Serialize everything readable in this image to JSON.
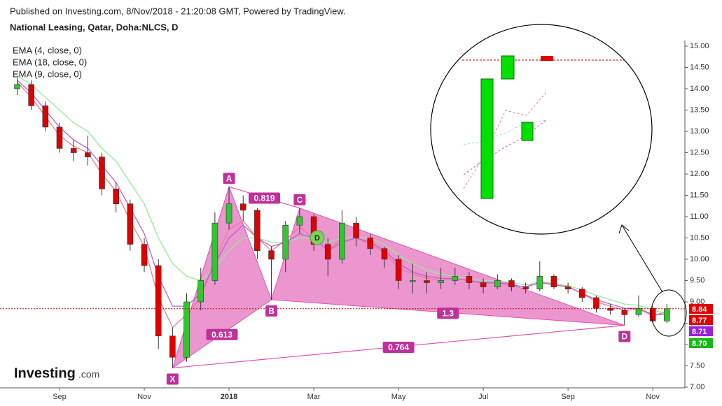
{
  "header": {
    "published": "Published on Investing.com, 8/Nov/2018 - 21:20:08 GMT, Powered by TradingView.",
    "logo": {
      "name": "Investing",
      "suffix": ".com"
    }
  },
  "chart_data": {
    "type": "candlestick",
    "title": "National Leasing, Qatar, Doha:NLCS, D",
    "categories": [
      null,
      null,
      null,
      "Sep",
      null,
      null,
      null,
      null,
      null,
      "Nov",
      null,
      null,
      null,
      null,
      null,
      "2018",
      null,
      null,
      null,
      null,
      null,
      "Mar",
      null,
      null,
      null,
      null,
      null,
      "May",
      null,
      null,
      null,
      null,
      null,
      "Jul",
      null,
      null,
      null,
      null,
      null,
      "Sep",
      null,
      null,
      null,
      null,
      null,
      "Nov",
      null
    ],
    "open": [
      14.0,
      14.1,
      13.6,
      13.1,
      12.6,
      12.5,
      12.4,
      11.65,
      11.3,
      10.35,
      9.85,
      8.2,
      7.7,
      9.0,
      9.5,
      10.85,
      11.3,
      11.15,
      10.2,
      10.0,
      10.8,
      11.0,
      10.35,
      10.0,
      10.85,
      10.5,
      10.25,
      10.0,
      9.5,
      9.5,
      9.45,
      9.5,
      9.6,
      9.45,
      9.35,
      9.5,
      9.35,
      9.3,
      9.6,
      9.35,
      9.3,
      9.1,
      8.85,
      8.8,
      8.7,
      8.85,
      8.55
    ],
    "high": [
      14.25,
      14.2,
      13.7,
      13.2,
      12.8,
      12.9,
      12.5,
      11.8,
      11.4,
      10.5,
      10.0,
      8.4,
      9.2,
      9.8,
      11.1,
      11.7,
      11.5,
      11.2,
      10.3,
      10.9,
      11.2,
      11.05,
      10.5,
      11.15,
      11.0,
      10.6,
      10.3,
      10.1,
      9.9,
      9.7,
      9.8,
      9.8,
      9.7,
      9.55,
      9.65,
      9.55,
      9.45,
      9.95,
      9.65,
      9.45,
      9.35,
      9.15,
      8.95,
      8.85,
      9.15,
      8.9,
      8.95
    ],
    "low": [
      13.85,
      13.5,
      13.0,
      12.5,
      12.3,
      12.2,
      11.5,
      11.1,
      10.2,
      9.7,
      7.9,
      7.45,
      7.6,
      8.8,
      9.4,
      10.7,
      10.9,
      10.0,
      9.05,
      9.7,
      10.6,
      10.2,
      9.6,
      9.9,
      10.3,
      10.1,
      9.8,
      9.3,
      9.2,
      9.2,
      9.3,
      9.4,
      9.3,
      9.2,
      9.3,
      9.25,
      9.2,
      9.25,
      9.3,
      9.2,
      9.0,
      8.75,
      8.7,
      8.45,
      8.65,
      8.5,
      8.5
    ],
    "close": [
      14.1,
      13.6,
      13.1,
      12.6,
      12.5,
      12.4,
      11.65,
      11.3,
      10.35,
      9.85,
      8.2,
      7.7,
      9.0,
      9.5,
      10.85,
      11.3,
      11.15,
      10.2,
      10.0,
      10.8,
      11.0,
      10.35,
      10.0,
      10.85,
      10.5,
      10.25,
      10.0,
      9.5,
      9.5,
      9.45,
      9.5,
      9.6,
      9.45,
      9.35,
      9.5,
      9.35,
      9.3,
      9.6,
      9.35,
      9.3,
      9.1,
      8.85,
      8.8,
      8.7,
      8.85,
      8.55,
      8.84
    ],
    "up_color": "#2ec82e",
    "down_color": "#e00000",
    "series": [
      {
        "name": "EMA (4, close, 0)",
        "color": "#f07a8a",
        "values": [
          14.15,
          13.8,
          13.35,
          12.9,
          12.65,
          12.5,
          12.0,
          11.6,
          10.9,
          10.3,
          9.1,
          8.4,
          8.7,
          9.1,
          10.0,
          10.7,
          10.9,
          10.5,
          10.2,
          10.45,
          10.75,
          10.5,
          10.2,
          10.5,
          10.5,
          10.35,
          10.15,
          9.8,
          9.65,
          9.55,
          9.5,
          9.55,
          9.5,
          9.42,
          9.46,
          9.4,
          9.35,
          9.48,
          9.42,
          9.36,
          9.2,
          9.0,
          8.9,
          8.8,
          8.83,
          8.68,
          8.77
        ]
      },
      {
        "name": "EMA (18, close, 0)",
        "color": "#90ee90",
        "values": [
          14.3,
          14.1,
          13.8,
          13.5,
          13.2,
          13.0,
          12.6,
          12.3,
          11.8,
          11.3,
          10.5,
          9.9,
          9.6,
          9.5,
          9.8,
          10.2,
          10.5,
          10.5,
          10.4,
          10.4,
          10.5,
          10.5,
          10.4,
          10.5,
          10.5,
          10.5,
          10.35,
          10.1,
          9.9,
          9.75,
          9.65,
          9.6,
          9.55,
          9.5,
          9.5,
          9.45,
          9.4,
          9.45,
          9.42,
          9.38,
          9.28,
          9.15,
          9.05,
          8.95,
          8.92,
          8.82,
          8.7
        ]
      },
      {
        "name": "EMA (9, close, 0)",
        "color": "#b860d0",
        "values": [
          14.2,
          13.9,
          13.5,
          13.1,
          12.8,
          12.6,
          12.2,
          11.8,
          11.2,
          10.6,
          9.6,
          8.9,
          8.9,
          9.2,
          9.9,
          10.5,
          10.8,
          10.5,
          10.3,
          10.4,
          10.6,
          10.5,
          10.2,
          10.4,
          10.5,
          10.4,
          10.2,
          9.9,
          9.7,
          9.6,
          9.55,
          9.55,
          9.5,
          9.45,
          9.45,
          9.4,
          9.35,
          9.45,
          9.4,
          9.35,
          9.2,
          9.05,
          8.95,
          8.85,
          8.85,
          8.7,
          8.71
        ]
      }
    ],
    "price_tags": [
      {
        "value": 8.84,
        "label": "8.84",
        "color": "#e00000"
      },
      {
        "value": 8.77,
        "label": "8.77",
        "color": "#e00000"
      },
      {
        "value": 8.71,
        "label": "8.71",
        "color": "#9b1fe0"
      },
      {
        "value": 8.7,
        "label": "8.70",
        "color": "#18b818"
      }
    ],
    "pattern": {
      "color": "#e050b0",
      "points": [
        {
          "label": "X",
          "value": 7.45
        },
        {
          "label": "A",
          "value": 11.7
        },
        {
          "label": "B",
          "value": 9.05
        },
        {
          "label": "C",
          "value": 11.2
        },
        {
          "label": "D",
          "value": 8.45
        }
      ],
      "ratios": [
        0.613,
        0.819,
        1.3,
        0.764
      ]
    },
    "annotations": [
      {
        "text": "D"
      }
    ],
    "ylim": [
      7,
      15.2
    ],
    "yticks": [
      {
        "value": 7,
        "label": "7.00"
      },
      {
        "value": 7.5,
        "label": "7.50"
      },
      {
        "value": 8,
        "label": "8.00"
      },
      {
        "value": 8.5,
        "label": "8.50"
      },
      {
        "value": 9,
        "label": "9.00"
      },
      {
        "value": 9.5,
        "label": "9.50"
      },
      {
        "value": 10,
        "label": "10.00"
      },
      {
        "value": 10.5,
        "label": "10.50"
      },
      {
        "value": 11,
        "label": "11.00"
      },
      {
        "value": 11.5,
        "label": "11.50"
      },
      {
        "value": 12,
        "label": "12.00"
      },
      {
        "value": 12.5,
        "label": "12.50"
      },
      {
        "value": 13,
        "label": "13.00"
      },
      {
        "value": 13.5,
        "label": "13.50"
      },
      {
        "value": 14,
        "label": "14.00"
      },
      {
        "value": 14.5,
        "label": "14.50"
      },
      {
        "value": 15,
        "label": "15.00"
      }
    ],
    "grid": false
  }
}
